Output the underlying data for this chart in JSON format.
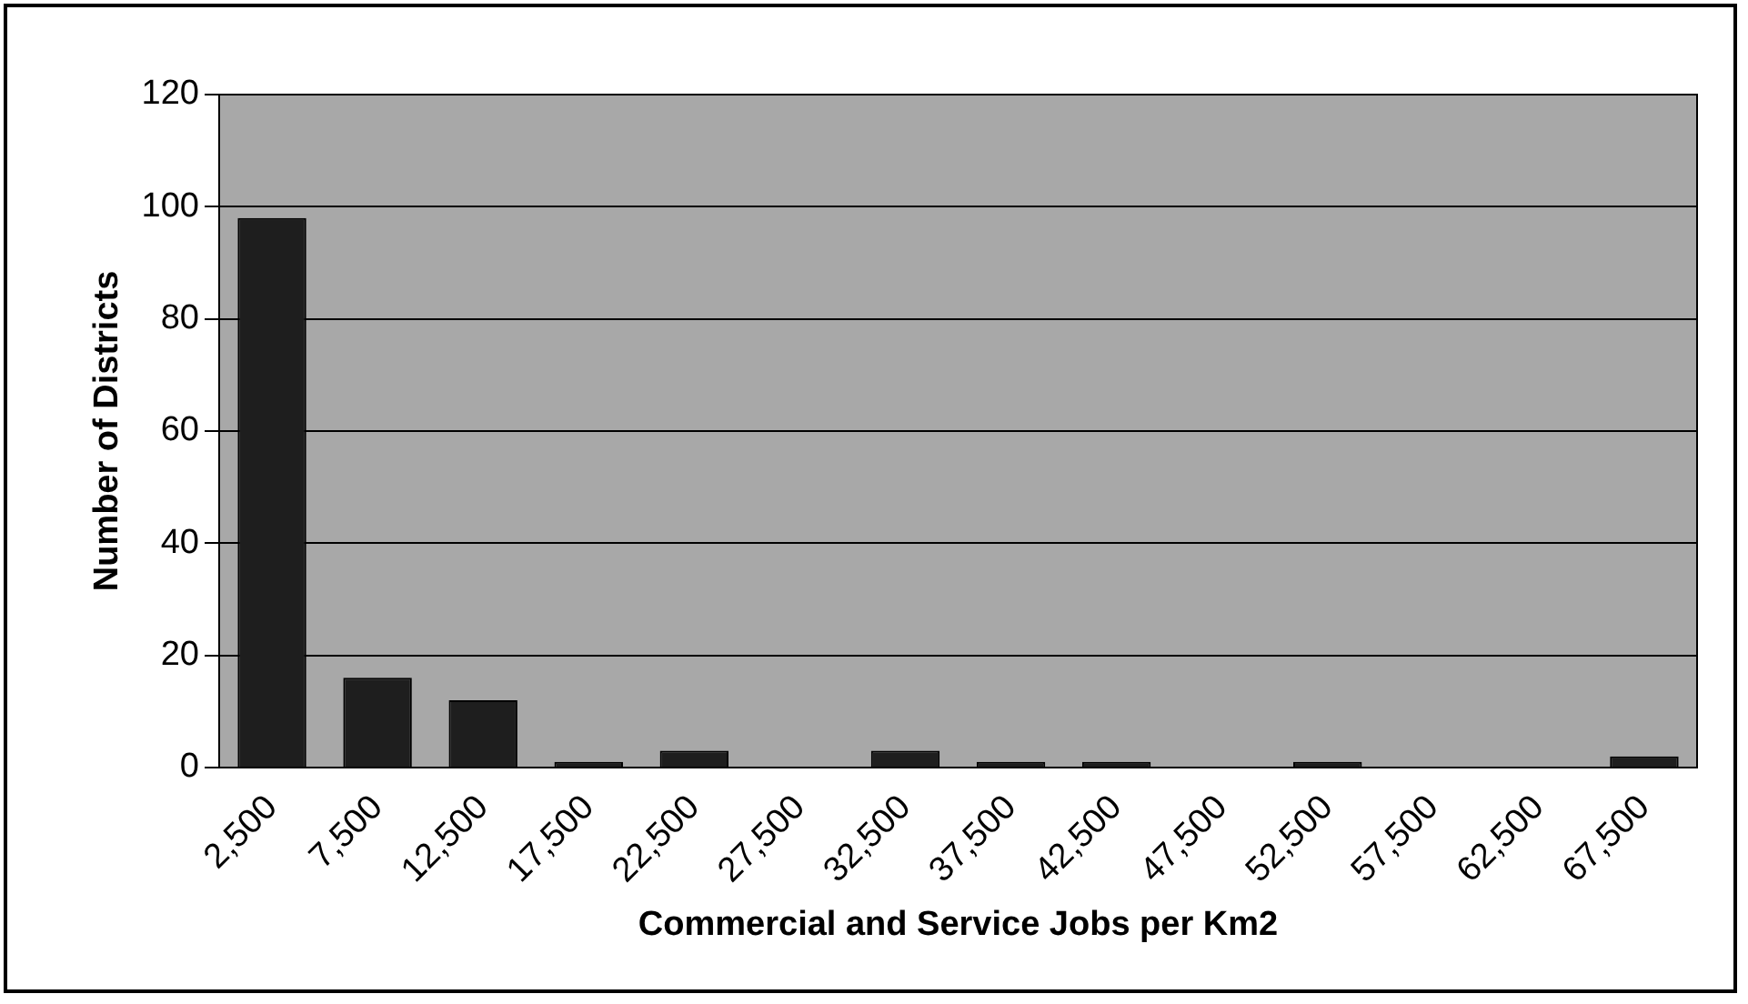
{
  "chart_data": {
    "type": "bar",
    "xlabel": "Commercial and Service Jobs per Km2",
    "ylabel": "Number of Districts",
    "categories": [
      "2,500",
      "7,500",
      "12,500",
      "17,500",
      "22,500",
      "27,500",
      "32,500",
      "37,500",
      "42,500",
      "47,500",
      "52,500",
      "57,500",
      "62,500",
      "67,500"
    ],
    "values": [
      98,
      16,
      12,
      1,
      3,
      0,
      3,
      1,
      1,
      0,
      1,
      0,
      0,
      2
    ],
    "color": "#1e1e1e",
    "ylim": [
      0,
      120
    ],
    "yticks": [
      0,
      20,
      40,
      60,
      80,
      100,
      120
    ],
    "grid": "y",
    "legend": false
  }
}
